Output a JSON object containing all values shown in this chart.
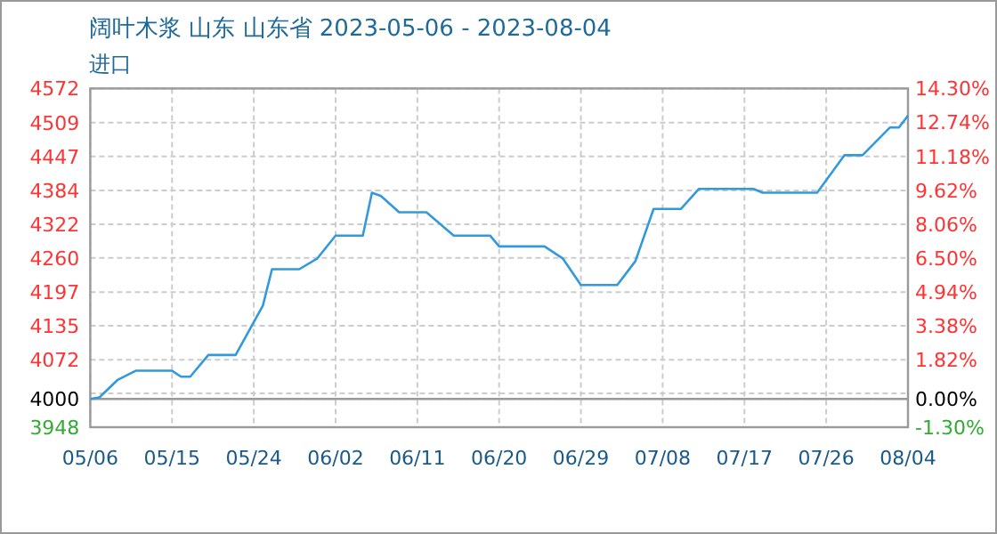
{
  "chart_data": {
    "type": "line",
    "title": "阔叶木浆 山东 山东省 2023-05-06 - 2023-08-04",
    "subtitle": "进口",
    "x": [
      "2023-05-06",
      "2023-05-07",
      "2023-05-09",
      "2023-05-11",
      "2023-05-15",
      "2023-05-16",
      "2023-05-17",
      "2023-05-19",
      "2023-05-22",
      "2023-05-25",
      "2023-05-26",
      "2023-05-29",
      "2023-05-31",
      "2023-06-02",
      "2023-06-05",
      "2023-06-06",
      "2023-06-07",
      "2023-06-09",
      "2023-06-12",
      "2023-06-15",
      "2023-06-19",
      "2023-06-20",
      "2023-06-25",
      "2023-06-27",
      "2023-06-29",
      "2023-07-03",
      "2023-07-05",
      "2023-07-07",
      "2023-07-10",
      "2023-07-12",
      "2023-07-18",
      "2023-07-19",
      "2023-07-25",
      "2023-07-28",
      "2023-07-30",
      "2023-08-02",
      "2023-08-03",
      "2023-08-04"
    ],
    "series": [
      {
        "color": "#3399dd",
        "values": [
          4000,
          4003,
          4035,
          4052,
          4052,
          4041,
          4041,
          4081,
          4081,
          4172,
          4239,
          4239,
          4259,
          4301,
          4301,
          4380,
          4374,
          4344,
          4344,
          4301,
          4301,
          4281,
          4281,
          4259,
          4210,
          4210,
          4254,
          4350,
          4350,
          4387,
          4387,
          4380,
          4380,
          4449,
          4449,
          4500,
          4500,
          4522
        ]
      }
    ],
    "xlim": [
      "2023-05-06",
      "2023-08-04"
    ],
    "xticks": [
      {
        "value": "2023-05-06",
        "label": "05/06"
      },
      {
        "value": "2023-05-15",
        "label": "05/15"
      },
      {
        "value": "2023-05-24",
        "label": "05/24"
      },
      {
        "value": "2023-06-02",
        "label": "06/02"
      },
      {
        "value": "2023-06-11",
        "label": "06/11"
      },
      {
        "value": "2023-06-20",
        "label": "06/20"
      },
      {
        "value": "2023-06-29",
        "label": "06/29"
      },
      {
        "value": "2023-07-08",
        "label": "07/08"
      },
      {
        "value": "2023-07-17",
        "label": "07/17"
      },
      {
        "value": "2023-07-26",
        "label": "07/26"
      },
      {
        "value": "2023-08-04",
        "label": "08/04"
      }
    ],
    "ylim": [
      3948,
      4572
    ],
    "yticks": [
      3948,
      4000,
      {
        "value": 4010.4,
        "label": null
      },
      4072,
      4135,
      4197,
      4260,
      4322,
      4384,
      4447,
      4509,
      4572
    ],
    "y2lim": [
      -1.3,
      14.3
    ],
    "y2ticks": [
      {
        "value": -1.3,
        "label": "-1.30%"
      },
      {
        "value": 0,
        "label": "0.00%"
      },
      {
        "value": 1.82,
        "label": "1.82%"
      },
      {
        "value": 3.38,
        "label": "3.38%"
      },
      {
        "value": 4.94,
        "label": "4.94%"
      },
      {
        "value": 6.5,
        "label": "6.50%"
      },
      {
        "value": 8.06,
        "label": "8.06%"
      },
      {
        "value": 9.62,
        "label": "9.62%"
      },
      {
        "value": 11.18,
        "label": "11.18%"
      },
      {
        "value": 12.74,
        "label": "12.74%"
      },
      {
        "value": 14.3,
        "label": "14.30%"
      }
    ],
    "ref_lines": [
      {
        "axis": "y",
        "value": 4000,
        "color": "#999999"
      }
    ],
    "grid": true
  }
}
